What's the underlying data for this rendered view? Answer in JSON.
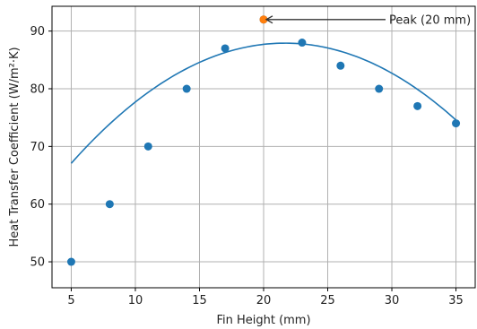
{
  "chart_data": {
    "type": "scatter",
    "xlabel": "Fin Height (mm)",
    "ylabel": "Heat Transfer Coefficient (W/m²·K)",
    "xlim": [
      3.5,
      36.5
    ],
    "ylim": [
      45.5,
      94.3
    ],
    "x_ticks": [
      5,
      10,
      15,
      20,
      25,
      30,
      35
    ],
    "y_ticks": [
      50,
      60,
      70,
      80,
      90
    ],
    "grid": true,
    "points": {
      "x": [
        5,
        8,
        11,
        14,
        17,
        20,
        23,
        26,
        29,
        32,
        35
      ],
      "y": [
        50,
        60,
        70,
        80,
        87,
        92,
        88,
        84,
        80,
        77,
        74
      ],
      "color": "#1f77b4"
    },
    "highlight": {
      "x": 20,
      "y": 92,
      "color": "#ff7f0e"
    },
    "fit_curve": {
      "x_range": [
        5,
        35
      ],
      "coefficients": [
        -0.075,
        3.25,
        52.7
      ],
      "color": "#1f77b4"
    },
    "annotation": {
      "text": "Peak (20 mm)",
      "target": {
        "x": 20,
        "y": 92
      }
    }
  }
}
